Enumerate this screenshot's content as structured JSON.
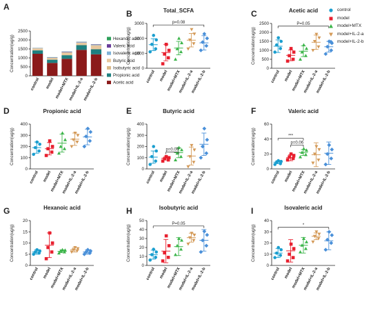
{
  "legend": [
    {
      "name": "control",
      "color": "#1a9ecf",
      "marker": "circle"
    },
    {
      "name": "model",
      "color": "#e8202f",
      "marker": "square"
    },
    {
      "name": "model+MTX",
      "color": "#3cb54a",
      "marker": "triangle"
    },
    {
      "name": "model+IL-2-a",
      "color": "#d49a58",
      "marker": "triangle-down"
    },
    {
      "name": "model+IL-2-b",
      "color": "#4a90d9",
      "marker": "diamond"
    }
  ],
  "chart_data": [
    {
      "panel": "A",
      "type": "bar",
      "stacked": true,
      "ylabel": "Concentration(ug/g)",
      "categories": [
        "control",
        "model",
        "model+MTX",
        "model+IL-2-a",
        "model+IL-2-b"
      ],
      "yticks": [
        0,
        500,
        1000,
        1500,
        2000,
        2500
      ],
      "ylim": [
        0,
        2500
      ],
      "series": [
        {
          "name": "Acetic acid",
          "color": "#8b1a1a",
          "values": [
            1230,
            720,
            950,
            1450,
            1200
          ]
        },
        {
          "name": "Propionic acid",
          "color": "#1e8080",
          "values": [
            190,
            180,
            200,
            260,
            280
          ]
        },
        {
          "name": "Isobutyric acid",
          "color": "#d9b98a",
          "values": [
            12,
            15,
            20,
            30,
            28
          ]
        },
        {
          "name": "Butyric acid",
          "color": "#e7c79d",
          "values": [
            100,
            90,
            140,
            110,
            200
          ]
        },
        {
          "name": "Isovaleric acid",
          "color": "#7fb2d8",
          "values": [
            12,
            13,
            18,
            26,
            23
          ]
        },
        {
          "name": "Valeric acid",
          "color": "#6a3d9a",
          "values": [
            9,
            15,
            22,
            19,
            20
          ]
        },
        {
          "name": "Hexanoic acid",
          "color": "#2ca05a",
          "values": [
            6,
            9,
            6,
            7,
            6
          ]
        }
      ],
      "legend_order": [
        "Hexanoic acid",
        "Valeric acid",
        "Isovaleric acid",
        "Butyric acid",
        "Isobutyric acid",
        "Propionic acid",
        "Acetic acid"
      ]
    },
    {
      "panel": "B",
      "type": "scatter",
      "title": "Total_SCFA",
      "ylabel": "Concentration(ug/g)",
      "categories": [
        "control",
        "model",
        "model+MTX",
        "model+IL-2-a",
        "model+IL-2-b"
      ],
      "ylim": [
        0,
        3000
      ],
      "yticks": [
        0,
        1000,
        2000,
        3000
      ],
      "points": [
        [
          1100,
          1300,
          1600,
          1900,
          2200
        ],
        [
          300,
          700,
          950,
          1200,
          1600
        ],
        [
          600,
          1100,
          1300,
          1700,
          2000
        ],
        [
          1300,
          1650,
          1900,
          2300,
          2600
        ],
        [
          1200,
          1500,
          1750,
          2000,
          2300
        ]
      ],
      "means": [
        1580,
        1050,
        1350,
        1880,
        1700
      ],
      "sds": [
        400,
        550,
        450,
        450,
        480
      ],
      "annotations": [
        {
          "text": "p=0.08",
          "from": 0,
          "to": 4,
          "y": 2900
        }
      ]
    },
    {
      "panel": "C",
      "type": "scatter",
      "title": "Acetic acid",
      "ylabel": "Concentration(ug/g)",
      "categories": [
        "control",
        "model",
        "model+MTX",
        "model+IL-2-a",
        "model+IL-2-b"
      ],
      "ylim": [
        0,
        2500
      ],
      "yticks": [
        0,
        500,
        1000,
        1500,
        2000,
        2500
      ],
      "points": [
        [
          900,
          1100,
          1300,
          1500,
          1700
        ],
        [
          400,
          500,
          700,
          900,
          1100
        ],
        [
          500,
          700,
          900,
          1100,
          1300
        ],
        [
          1000,
          1200,
          1500,
          1700,
          1900
        ],
        [
          800,
          1000,
          1200,
          1400,
          1500
        ]
      ],
      "means": [
        1230,
        720,
        950,
        1450,
        1200
      ],
      "sds": [
        350,
        300,
        300,
        400,
        300
      ],
      "annotations": [
        {
          "text": "P=0.05",
          "from": 0,
          "to": 4,
          "y": 2350
        }
      ]
    },
    {
      "panel": "D",
      "type": "scatter",
      "title": "Propionic acid",
      "ylabel": "Concentration(ug/g)",
      "categories": [
        "control",
        "model",
        "model+MTX",
        "model+IL-2-a",
        "model+IL-2-b"
      ],
      "ylim": [
        0,
        400
      ],
      "yticks": [
        0,
        100,
        200,
        300,
        400
      ],
      "points": [
        [
          130,
          160,
          190,
          220,
          240
        ],
        [
          120,
          150,
          180,
          200,
          250
        ],
        [
          140,
          180,
          200,
          260,
          320
        ],
        [
          200,
          240,
          260,
          300,
          320
        ],
        [
          200,
          250,
          290,
          330,
          360
        ]
      ],
      "means": [
        190,
        180,
        230,
        265,
        285
      ],
      "sds": [
        50,
        55,
        80,
        55,
        70
      ],
      "annotations": []
    },
    {
      "panel": "E",
      "type": "scatter",
      "title": "Butyric acid",
      "ylabel": "Concentration(ug/g)",
      "categories": [
        "control",
        "model",
        "model+MTX",
        "model+IL-2-a",
        "model+IL-2-b"
      ],
      "ylim": [
        0,
        400
      ],
      "yticks": [
        0,
        100,
        200,
        300,
        400
      ],
      "points": [
        [
          40,
          70,
          110,
          160,
          200
        ],
        [
          70,
          80,
          90,
          100,
          110
        ],
        [
          80,
          110,
          140,
          170,
          190
        ],
        [
          20,
          60,
          110,
          170,
          210
        ],
        [
          100,
          140,
          200,
          260,
          360
        ]
      ],
      "means": [
        105,
        95,
        145,
        115,
        220
      ],
      "sds": [
        55,
        15,
        45,
        80,
        100
      ],
      "annotations": [
        {
          "text": "p=0.09",
          "from": 1,
          "to": 2,
          "y": 150
        }
      ]
    },
    {
      "panel": "F",
      "type": "scatter",
      "title": "Valeric acid",
      "ylabel": "Concentration(ug/g)",
      "categories": [
        "control",
        "model",
        "model+MTX",
        "model+IL-2-a",
        "model+IL-2-b"
      ],
      "ylim": [
        0,
        60
      ],
      "yticks": [
        0,
        20,
        40,
        60
      ],
      "points": [
        [
          6,
          7,
          9,
          10,
          11
        ],
        [
          12,
          14,
          16,
          18,
          20
        ],
        [
          16,
          19,
          22,
          25,
          27
        ],
        [
          8,
          12,
          20,
          26,
          30
        ],
        [
          6,
          14,
          20,
          26,
          32
        ]
      ],
      "means": [
        9,
        15,
        22,
        19,
        21
      ],
      "sds": [
        2,
        4,
        4,
        16,
        15
      ],
      "annotations": [
        {
          "text": "***",
          "from": 0,
          "to": 2,
          "y": 41
        },
        {
          "text": "p=0.06",
          "from": 1,
          "to": 2,
          "y": 32
        }
      ]
    },
    {
      "panel": "G",
      "type": "scatter",
      "title": "Hexanoic acid",
      "ylabel": "Concentration(ug/g)",
      "categories": [
        "control",
        "model",
        "model+MTX",
        "model+IL-2-a",
        "model+IL-2-b"
      ],
      "ylim": [
        0,
        20
      ],
      "yticks": [
        0,
        5,
        10,
        15,
        20
      ],
      "points": [
        [
          5,
          5.5,
          6,
          6.5,
          7
        ],
        [
          3,
          6,
          8,
          10,
          14.5
        ],
        [
          5.5,
          6,
          6.5,
          6.8,
          7
        ],
        [
          6,
          6.5,
          7,
          7.5,
          8
        ],
        [
          5,
          5.5,
          6,
          6.5,
          7
        ]
      ],
      "means": [
        6,
        9,
        6.3,
        7,
        6
      ],
      "sds": [
        1,
        5.5,
        0.6,
        1,
        1
      ],
      "annotations": []
    },
    {
      "panel": "H",
      "type": "scatter",
      "title": "Isobutyric acid",
      "ylabel": "Concentration(ug/g)",
      "categories": [
        "control",
        "model",
        "model+MTX",
        "model+IL-2-a",
        "model+IL-2-b"
      ],
      "ylim": [
        0,
        50
      ],
      "yticks": [
        0,
        10,
        20,
        30,
        40,
        50
      ],
      "points": [
        [
          6,
          9,
          12,
          15,
          18
        ],
        [
          5,
          9,
          14,
          22,
          33
        ],
        [
          12,
          18,
          22,
          28,
          30
        ],
        [
          24,
          28,
          31,
          34,
          36
        ],
        [
          15,
          22,
          28,
          34,
          38
        ]
      ],
      "means": [
        12,
        16,
        21,
        31,
        28
      ],
      "sds": [
        5,
        13,
        10,
        5,
        12
      ],
      "annotations": [
        {
          "text": "P=0.05",
          "from": 0,
          "to": 4,
          "y": 44
        }
      ]
    },
    {
      "panel": "I",
      "type": "scatter",
      "title": "Isovaleric acid",
      "ylabel": "Concentration(ug/g)",
      "categories": [
        "control",
        "model",
        "model+MTX",
        "model+IL-2-a",
        "model+IL-2-b"
      ],
      "ylim": [
        0,
        40
      ],
      "yticks": [
        0,
        10,
        20,
        30,
        40
      ],
      "points": [
        [
          7,
          9,
          11,
          14,
          16
        ],
        [
          4,
          7,
          10,
          15,
          19
        ],
        [
          12,
          15,
          18,
          21,
          24
        ],
        [
          21,
          24,
          26,
          28,
          30
        ],
        [
          14,
          20,
          23,
          27,
          30
        ]
      ],
      "means": [
        11,
        13,
        18,
        26,
        22
      ],
      "sds": [
        4,
        10,
        7,
        3,
        8
      ],
      "annotations": [
        {
          "text": "*",
          "from": 0,
          "to": 4,
          "y": 34
        }
      ]
    }
  ]
}
